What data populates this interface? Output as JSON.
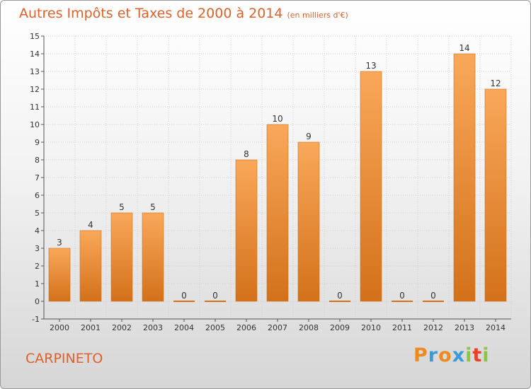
{
  "title": "Autres Impôts et Taxes de 2000 à 2014",
  "unit_note": "(en milliers d'€)",
  "city": "CARPINETO",
  "logo": {
    "text": "Proxiti",
    "letters": [
      "P",
      "r",
      "o",
      "x",
      "i",
      "t",
      "i"
    ],
    "colors": [
      "#f08a1c",
      "#3a9bd8",
      "#f08a1c",
      "#3a9bd8",
      "#8cc63f",
      "#e8402a",
      "#8cc63f"
    ]
  },
  "colors": {
    "bar_light": "#f9a85a",
    "bar_dark": "#d3711a",
    "zero_line": "#d3711a",
    "grid": "#cfcfcf",
    "axis": "#555555",
    "text": "#333333",
    "accent": "#e0602a"
  },
  "chart_data": {
    "type": "bar",
    "title": "Autres Impôts et Taxes de 2000 à 2014",
    "subtitle": "(en milliers d'€)",
    "xlabel": "",
    "ylabel": "",
    "categories": [
      "2000",
      "2001",
      "2002",
      "2003",
      "2004",
      "2005",
      "2006",
      "2007",
      "2008",
      "2009",
      "2010",
      "2011",
      "2012",
      "2013",
      "2014"
    ],
    "values": [
      3,
      4,
      5,
      5,
      0,
      0,
      8,
      10,
      9,
      0,
      13,
      0,
      0,
      14,
      12
    ],
    "ylim": [
      -1,
      15
    ],
    "yticks": [
      -1,
      0,
      1,
      2,
      3,
      4,
      5,
      6,
      7,
      8,
      9,
      10,
      11,
      12,
      13,
      14,
      15
    ],
    "grid": true,
    "data_labels": true
  }
}
